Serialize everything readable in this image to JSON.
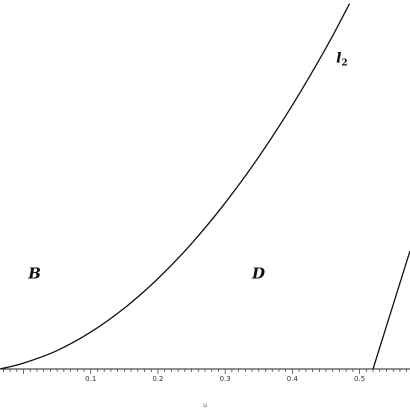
{
  "chart_data": {
    "type": "line",
    "title": "",
    "xlabel": "u",
    "ylabel": "",
    "xlim": [
      -0.035,
      0.575
    ],
    "ylim": [
      0,
      1
    ],
    "x_ticks": [
      0.1,
      0.2,
      0.3,
      0.4,
      0.5
    ],
    "x_tick_labels": [
      "0.1",
      "0.2",
      "0.3",
      "0.4",
      "0.5"
    ],
    "minor_tick_step": 0.01,
    "grid": false,
    "series": [
      {
        "name": "l",
        "subscript": "2",
        "color": "#111111",
        "points": [
          [
            -0.035,
            0.0
          ],
          [
            0.0,
            0.016
          ],
          [
            0.05,
            0.05
          ],
          [
            0.1,
            0.1
          ],
          [
            0.15,
            0.165
          ],
          [
            0.2,
            0.245
          ],
          [
            0.25,
            0.34
          ],
          [
            0.3,
            0.45
          ],
          [
            0.35,
            0.575
          ],
          [
            0.4,
            0.715
          ],
          [
            0.45,
            0.87
          ],
          [
            0.485,
            0.99
          ]
        ]
      },
      {
        "name": "",
        "color": "#111111",
        "points": [
          [
            0.52,
            0.0
          ],
          [
            0.575,
            0.32
          ]
        ]
      }
    ],
    "regions": [
      {
        "label": "B",
        "x": 0.007,
        "y": 0.245
      },
      {
        "label": "D",
        "x": 0.34,
        "y": 0.245
      }
    ],
    "curve_label_position": {
      "x": 0.465,
      "y": 0.83
    }
  }
}
